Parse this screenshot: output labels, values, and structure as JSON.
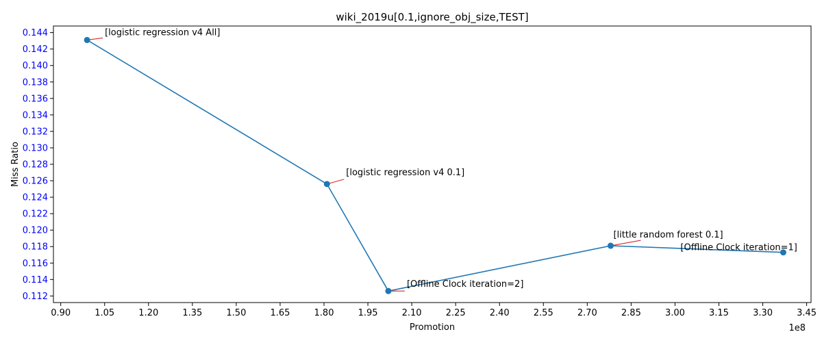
{
  "chart_data": {
    "type": "line",
    "title": "wiki_2019u[0.1,ignore_obj_size,TEST]",
    "xlabel": "Promotion",
    "ylabel": "Miss Ratio",
    "x_offset_label": "1e8",
    "xlim": [
      0.875,
      3.465
    ],
    "ylim": [
      0.1112,
      0.1448
    ],
    "x_ticks": [
      0.9,
      1.05,
      1.2,
      1.35,
      1.5,
      1.65,
      1.8,
      1.95,
      2.1,
      2.25,
      2.4,
      2.55,
      2.7,
      2.85,
      3.0,
      3.15,
      3.3,
      3.45
    ],
    "x_tick_labels": [
      "0.90",
      "1.05",
      "1.20",
      "1.35",
      "1.50",
      "1.65",
      "1.80",
      "1.95",
      "2.10",
      "2.25",
      "2.40",
      "2.55",
      "2.70",
      "2.85",
      "3.00",
      "3.15",
      "3.30",
      "3.45"
    ],
    "y_ticks": [
      0.112,
      0.114,
      0.116,
      0.118,
      0.12,
      0.122,
      0.124,
      0.126,
      0.128,
      0.13,
      0.132,
      0.134,
      0.136,
      0.138,
      0.14,
      0.142,
      0.144
    ],
    "y_tick_labels": [
      "0.112",
      "0.114",
      "0.116",
      "0.118",
      "0.120",
      "0.122",
      "0.124",
      "0.126",
      "0.128",
      "0.130",
      "0.132",
      "0.134",
      "0.136",
      "0.138",
      "0.140",
      "0.142",
      "0.144"
    ],
    "series": [
      {
        "points": [
          {
            "x": 0.99,
            "y": 0.1431,
            "label": "[logistic regression v4 All]"
          },
          {
            "x": 1.81,
            "y": 0.1256,
            "label": "[logistic regression v4 0.1]"
          },
          {
            "x": 2.02,
            "y": 0.1126,
            "label": "[Offline Clock iteration=2]"
          },
          {
            "x": 2.78,
            "y": 0.1181,
            "label": "[little random forest 0.1]"
          },
          {
            "x": 3.37,
            "y": 0.1173,
            "label": "[Offline Clock iteration=1]"
          }
        ]
      }
    ],
    "grid": false,
    "colors": {
      "line": "#1f77b4",
      "marker": "#1f77b4",
      "annotation_arrow": "#d62728",
      "y_tick_labels": "#0000ff",
      "text": "#000000"
    }
  }
}
